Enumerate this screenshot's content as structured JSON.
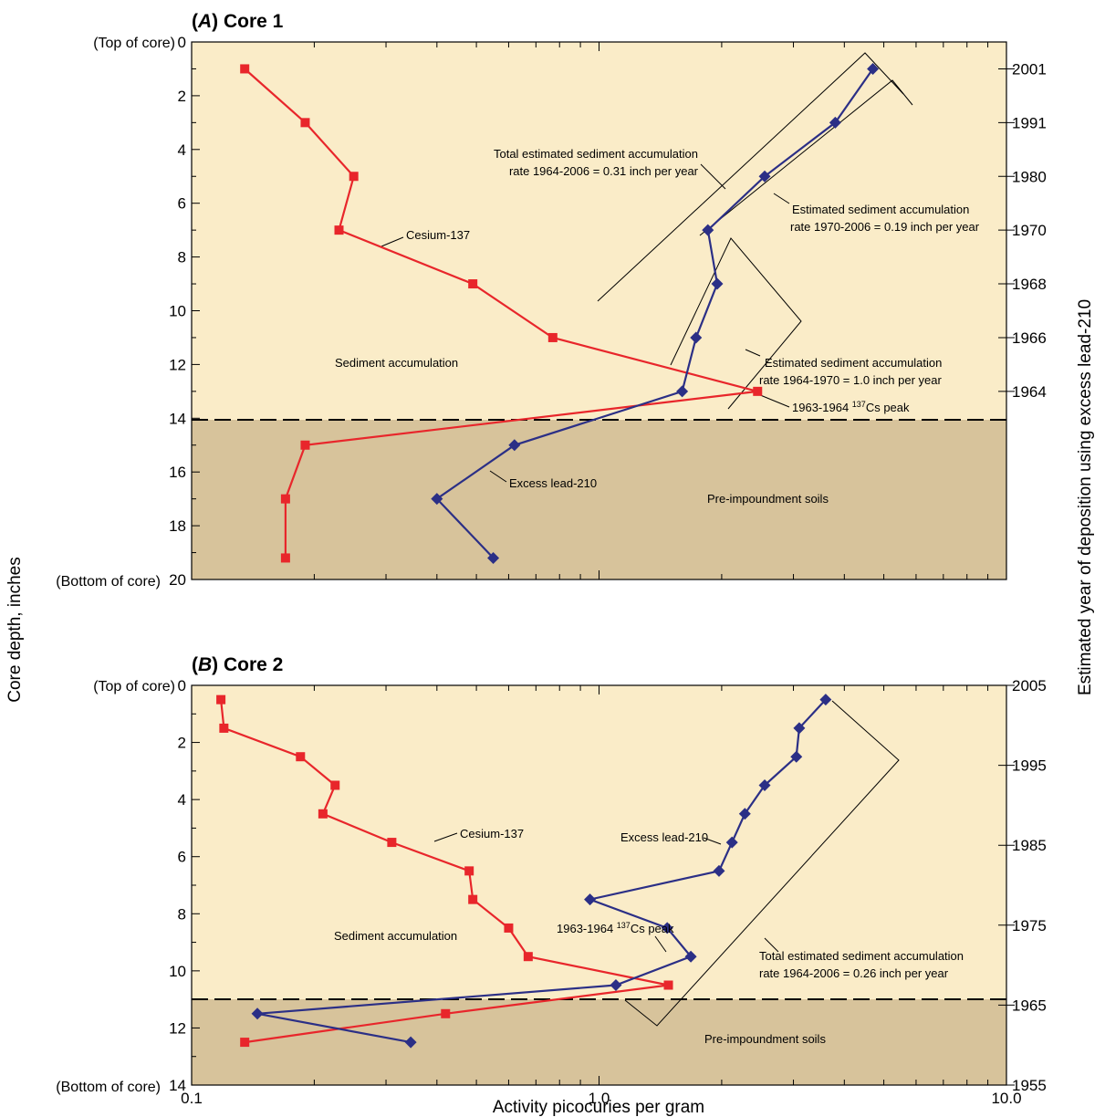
{
  "colors": {
    "cesium": "#e8262b",
    "lead": "#2b2f86",
    "sediment_fill": "#faecc8",
    "soil_fill": "#d7c39b",
    "annotation": "#000000"
  },
  "x_axis": {
    "title": "Activity picocuries per gram",
    "scale": "log",
    "range": [
      0.1,
      10.0
    ],
    "tick_labels": [
      "0.1",
      "1.0",
      "10.0"
    ]
  },
  "left_axis_title": "Core depth, inches",
  "right_axis_title": "Estimated year of deposition using excess lead-210",
  "top_of_core_label": "(Top of core)",
  "bottom_of_core_label": "(Bottom of core)",
  "chart_data": [
    {
      "type": "line",
      "panel_letter": "A",
      "panel_name": "Core 1",
      "ylabel": "Core depth, inches",
      "y_reversed": true,
      "ylim": [
        0,
        20
      ],
      "y_ticks": [
        0,
        2,
        4,
        6,
        8,
        10,
        12,
        14,
        16,
        18,
        20
      ],
      "y_tick_labels": [
        "0",
        "2",
        "4",
        "6",
        "8",
        "10",
        "12",
        "14",
        "16",
        "18",
        "20"
      ],
      "right_axis": {
        "ticks": [
          {
            "depth": 1,
            "label": "2001"
          },
          {
            "depth": 3,
            "label": "1991"
          },
          {
            "depth": 5,
            "label": "1980"
          },
          {
            "depth": 7,
            "label": "1970"
          },
          {
            "depth": 9,
            "label": "1968"
          },
          {
            "depth": 11,
            "label": "1966"
          },
          {
            "depth": 13,
            "label": "1964"
          }
        ]
      },
      "boundary_depth": 14,
      "series": [
        {
          "name": "Cesium-137",
          "marker": "square",
          "points": [
            {
              "activity": 0.135,
              "depth": 1
            },
            {
              "activity": 0.19,
              "depth": 3
            },
            {
              "activity": 0.25,
              "depth": 5
            },
            {
              "activity": 0.23,
              "depth": 7
            },
            {
              "activity": 0.49,
              "depth": 9
            },
            {
              "activity": 0.77,
              "depth": 11
            },
            {
              "activity": 2.45,
              "depth": 13
            },
            {
              "activity": 0.19,
              "depth": 15
            },
            {
              "activity": 0.17,
              "depth": 17
            },
            {
              "activity": 0.17,
              "depth": 19.2
            }
          ]
        },
        {
          "name": "Excess lead-210",
          "marker": "diamond",
          "points": [
            {
              "activity": 4.7,
              "depth": 1
            },
            {
              "activity": 3.8,
              "depth": 3
            },
            {
              "activity": 2.55,
              "depth": 5
            },
            {
              "activity": 1.85,
              "depth": 7
            },
            {
              "activity": 1.95,
              "depth": 9
            },
            {
              "activity": 1.73,
              "depth": 11
            },
            {
              "activity": 1.6,
              "depth": 13
            },
            {
              "activity": 0.62,
              "depth": 15
            },
            {
              "activity": 0.4,
              "depth": 17
            },
            {
              "activity": 0.55,
              "depth": 19.2
            }
          ]
        }
      ],
      "annotations": {
        "cesium_label": "Cesium-137",
        "lead_label": "Excess lead-210",
        "sediment_label": "Sediment accumulation",
        "soils_label": "Pre-impoundment soils",
        "peak_label_prefix": "1963-1964 ",
        "peak_superscript": "137",
        "peak_label_suffix": "Cs peak",
        "total_rate_line1": "Total estimated sediment accumulation",
        "total_rate_line2": "rate 1964-2006 = 0.31 inch per year",
        "rate1970_line1": "Estimated sediment accumulation",
        "rate1970_line2": "rate 1970-2006 = 0.19 inch per year",
        "rate1964_line1": "Estimated sediment accumulation",
        "rate1964_line2": "rate 1964-1970 = 1.0 inch per year"
      }
    },
    {
      "type": "line",
      "panel_letter": "B",
      "panel_name": "Core 2",
      "ylabel": "Core depth, inches",
      "y_reversed": true,
      "ylim": [
        0,
        14
      ],
      "y_ticks": [
        0,
        2,
        4,
        6,
        8,
        10,
        12,
        14
      ],
      "y_tick_labels": [
        "0",
        "2",
        "4",
        "6",
        "8",
        "10",
        "12",
        "14"
      ],
      "right_axis": {
        "ticks": [
          {
            "depth": 0,
            "label": "2005"
          },
          {
            "depth": 2.8,
            "label": "1995"
          },
          {
            "depth": 5.6,
            "label": "1985"
          },
          {
            "depth": 8.4,
            "label": "1975"
          },
          {
            "depth": 11.2,
            "label": "1965"
          },
          {
            "depth": 14,
            "label": "1955"
          }
        ]
      },
      "boundary_depth": 11,
      "series": [
        {
          "name": "Cesium-137",
          "marker": "square",
          "points": [
            {
              "activity": 0.118,
              "depth": 0.5
            },
            {
              "activity": 0.12,
              "depth": 1.5
            },
            {
              "activity": 0.185,
              "depth": 2.5
            },
            {
              "activity": 0.225,
              "depth": 3.5
            },
            {
              "activity": 0.21,
              "depth": 4.5
            },
            {
              "activity": 0.31,
              "depth": 5.5
            },
            {
              "activity": 0.48,
              "depth": 6.5
            },
            {
              "activity": 0.49,
              "depth": 7.5
            },
            {
              "activity": 0.6,
              "depth": 8.5
            },
            {
              "activity": 0.67,
              "depth": 9.5
            },
            {
              "activity": 1.48,
              "depth": 10.5
            },
            {
              "activity": 0.42,
              "depth": 11.5
            },
            {
              "activity": 0.135,
              "depth": 12.5
            }
          ]
        },
        {
          "name": "Excess lead-210",
          "marker": "diamond",
          "points": [
            {
              "activity": 3.6,
              "depth": 0.5
            },
            {
              "activity": 3.1,
              "depth": 1.5
            },
            {
              "activity": 3.05,
              "depth": 2.5
            },
            {
              "activity": 2.55,
              "depth": 3.5
            },
            {
              "activity": 2.28,
              "depth": 4.5
            },
            {
              "activity": 2.12,
              "depth": 5.5
            },
            {
              "activity": 1.97,
              "depth": 6.5
            },
            {
              "activity": 0.95,
              "depth": 7.5
            },
            {
              "activity": 1.47,
              "depth": 8.5
            },
            {
              "activity": 1.68,
              "depth": 9.5
            },
            {
              "activity": 1.1,
              "depth": 10.5
            },
            {
              "activity": 0.145,
              "depth": 11.5
            },
            {
              "activity": 0.345,
              "depth": 12.5
            }
          ]
        }
      ],
      "annotations": {
        "cesium_label": "Cesium-137",
        "lead_label": "Excess lead-210",
        "sediment_label": "Sediment accumulation",
        "soils_label": "Pre-impoundment soils",
        "peak_label_prefix": "1963-1964 ",
        "peak_superscript": "137",
        "peak_label_suffix": "Cs peak",
        "total_rate_line1": "Total estimated sediment accumulation",
        "total_rate_line2": "rate 1964-2006 = 0.26 inch per year"
      }
    }
  ]
}
